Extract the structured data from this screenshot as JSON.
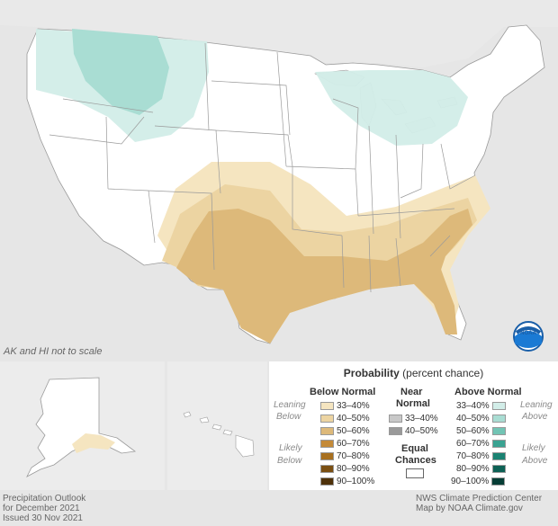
{
  "note": "AK and HI not to scale",
  "legend": {
    "title_bold": "Probability",
    "title_rest": " (percent chance)",
    "below_header": "Below Normal",
    "near_header_1": "Near",
    "near_header_2": "Normal",
    "above_header": "Above Normal",
    "leaning_below_1": "Leaning",
    "leaning_below_2": "Below",
    "likely_below_1": "Likely",
    "likely_below_2": "Below",
    "leaning_above_1": "Leaning",
    "leaning_above_2": "Above",
    "likely_above_1": "Likely",
    "likely_above_2": "Above",
    "equal_1": "Equal",
    "equal_2": "Chances",
    "below": [
      {
        "label": "33–40%",
        "color": "#f5e5c0"
      },
      {
        "label": "40–50%",
        "color": "#ecd4a2"
      },
      {
        "label": "50–60%",
        "color": "#ddb97a"
      },
      {
        "label": "60–70%",
        "color": "#c48a38"
      },
      {
        "label": "70–80%",
        "color": "#a8701f"
      },
      {
        "label": "80–90%",
        "color": "#7a4f12"
      },
      {
        "label": "90–100%",
        "color": "#4e3109"
      }
    ],
    "near": [
      {
        "label": "33–40%",
        "color": "#c8c8c8"
      },
      {
        "label": "40–50%",
        "color": "#9a9a9a"
      }
    ],
    "above": [
      {
        "label": "33–40%",
        "color": "#d2ede8"
      },
      {
        "label": "40–50%",
        "color": "#a9ddd3"
      },
      {
        "label": "50–60%",
        "color": "#72c4b4"
      },
      {
        "label": "60–70%",
        "color": "#3aa392"
      },
      {
        "label": "70–80%",
        "color": "#1a8272"
      },
      {
        "label": "80–90%",
        "color": "#0d6155"
      },
      {
        "label": "90–100%",
        "color": "#063d35"
      }
    ]
  },
  "footer": {
    "left1": "Precipitation Outlook",
    "left2": "for December 2021",
    "left3": "Issued 30 Nov 2021",
    "right1": "NWS Climate Prediction Center",
    "right2": "Map by NOAA Climate.gov"
  },
  "logo_text": "NOAA"
}
